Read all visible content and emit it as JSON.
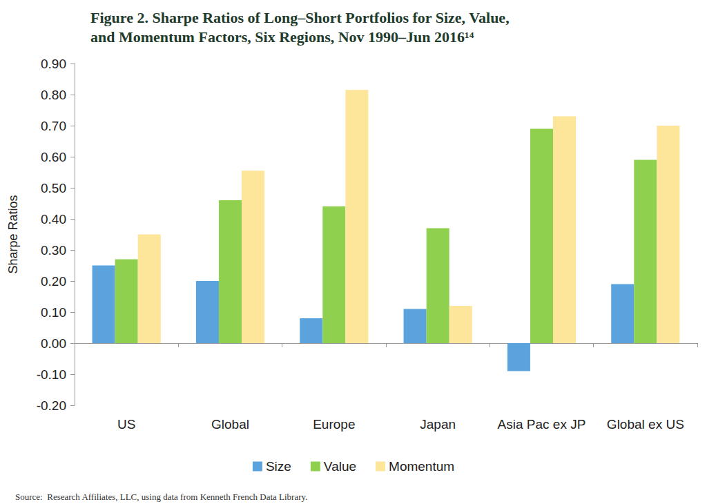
{
  "chart_data": {
    "type": "bar",
    "title": "Figure 2. Sharpe Ratios of Long–Short Portfolios for Size, Value,\nand Momentum Factors, Six Regions, Nov 1990–Jun 2016¹⁴",
    "y_label": "Sharpe Ratios",
    "annotations": [
      "Source:  Research Affiliates, LLC, using data from Kenneth French Data Library."
    ],
    "categories": [
      "US",
      "Global",
      "Europe",
      "Japan",
      "Asia Pac ex JP",
      "Global ex US"
    ],
    "series": [
      {
        "name": "Size",
        "color": "#5ba3dc",
        "values": [
          0.25,
          0.2,
          0.08,
          0.11,
          -0.09,
          0.19
        ]
      },
      {
        "name": "Value",
        "color": "#8fd14f",
        "values": [
          0.27,
          0.46,
          0.44,
          0.37,
          0.69,
          0.59
        ]
      },
      {
        "name": "Momentum",
        "color": "#fde59a",
        "values": [
          0.35,
          0.555,
          0.815,
          0.12,
          0.73,
          0.7
        ]
      }
    ],
    "ylim": [
      -0.2,
      0.9
    ],
    "yticks": [
      {
        "value": -0.2,
        "label": "-0.20"
      },
      {
        "value": -0.1,
        "label": "-0.10"
      },
      {
        "value": 0,
        "label": "0.00"
      },
      {
        "value": 0.1,
        "label": "0.10"
      },
      {
        "value": 0.2,
        "label": "0.20"
      },
      {
        "value": 0.3,
        "label": "0.30"
      },
      {
        "value": 0.4,
        "label": "0.40"
      },
      {
        "value": 0.5,
        "label": "0.50"
      },
      {
        "value": 0.6,
        "label": "0.60"
      },
      {
        "value": 0.7,
        "label": "0.70"
      },
      {
        "value": 0.8,
        "label": "0.80"
      },
      {
        "value": 0.9,
        "label": "0.90"
      }
    ],
    "grid": false,
    "legend": "bottom"
  }
}
